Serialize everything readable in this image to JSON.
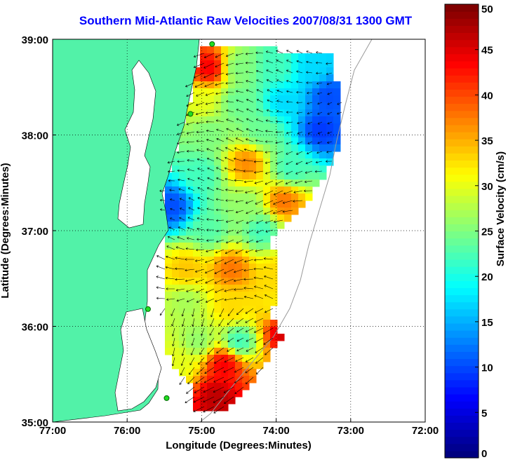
{
  "chart_data": {
    "type": "heatmap",
    "title": "Southern Mid-Atlantic Raw Velocities 2007/08/31 1300 GMT",
    "xlabel": "Longitude (Degrees:Minutes)",
    "ylabel": "Latitude (Degrees:Minutes)",
    "x_ticks": [
      {
        "value": -77,
        "label": "77:00"
      },
      {
        "value": -76,
        "label": "76:00"
      },
      {
        "value": -75,
        "label": "75:00"
      },
      {
        "value": -74,
        "label": "74:00"
      },
      {
        "value": -73,
        "label": "73:00"
      },
      {
        "value": -72,
        "label": "72:00"
      }
    ],
    "y_ticks": [
      {
        "value": 35,
        "label": "35:00"
      },
      {
        "value": 36,
        "label": "36:00"
      },
      {
        "value": 37,
        "label": "37:00"
      },
      {
        "value": 38,
        "label": "38:00"
      },
      {
        "value": 39,
        "label": "39:00"
      }
    ],
    "xlim": [
      -77,
      -72
    ],
    "ylim": [
      35,
      39
    ],
    "grid": "dotted",
    "colorbar": {
      "label": "Surface Velocity (cm/s)",
      "range": [
        0,
        50
      ],
      "ticks": [
        0,
        5,
        10,
        15,
        20,
        25,
        30,
        35,
        40,
        45,
        50
      ],
      "colormap": "jet"
    },
    "velocity_regions": [
      {
        "lon": -74.9,
        "lat": 38.7,
        "speed": 44
      },
      {
        "lon": -74.5,
        "lat": 38.7,
        "speed": 25
      },
      {
        "lon": -74.0,
        "lat": 38.7,
        "speed": 22
      },
      {
        "lon": -73.5,
        "lat": 38.7,
        "speed": 17
      },
      {
        "lon": -75.0,
        "lat": 38.35,
        "speed": 30
      },
      {
        "lon": -74.5,
        "lat": 38.35,
        "speed": 24
      },
      {
        "lon": -73.9,
        "lat": 38.35,
        "speed": 17
      },
      {
        "lon": -73.3,
        "lat": 38.4,
        "speed": 10
      },
      {
        "lon": -73.4,
        "lat": 38.05,
        "speed": 9
      },
      {
        "lon": -74.2,
        "lat": 38.05,
        "speed": 24
      },
      {
        "lon": -74.9,
        "lat": 38.0,
        "speed": 25
      },
      {
        "lon": -74.4,
        "lat": 37.7,
        "speed": 37
      },
      {
        "lon": -75.0,
        "lat": 37.6,
        "speed": 22
      },
      {
        "lon": -73.8,
        "lat": 37.65,
        "speed": 22
      },
      {
        "lon": -75.4,
        "lat": 37.25,
        "speed": 10
      },
      {
        "lon": -74.4,
        "lat": 37.25,
        "speed": 26
      },
      {
        "lon": -73.9,
        "lat": 37.3,
        "speed": 38
      },
      {
        "lon": -74.9,
        "lat": 37.0,
        "speed": 23
      },
      {
        "lon": -74.2,
        "lat": 37.0,
        "speed": 22
      },
      {
        "lon": -75.2,
        "lat": 36.6,
        "speed": 34
      },
      {
        "lon": -74.6,
        "lat": 36.6,
        "speed": 38
      },
      {
        "lon": -74.0,
        "lat": 36.55,
        "speed": 33
      },
      {
        "lon": -75.2,
        "lat": 36.25,
        "speed": 27
      },
      {
        "lon": -74.6,
        "lat": 36.2,
        "speed": 33
      },
      {
        "lon": -74.0,
        "lat": 36.2,
        "speed": 32
      },
      {
        "lon": -75.05,
        "lat": 35.85,
        "speed": 26
      },
      {
        "lon": -74.5,
        "lat": 35.85,
        "speed": 22
      },
      {
        "lon": -73.9,
        "lat": 35.95,
        "speed": 46
      },
      {
        "lon": -75.3,
        "lat": 35.6,
        "speed": 30
      },
      {
        "lon": -74.7,
        "lat": 35.6,
        "speed": 44
      },
      {
        "lon": -74.8,
        "lat": 35.25,
        "speed": 47
      }
    ],
    "hf_radar_sites": [
      {
        "lon": -74.86,
        "lat": 38.95
      },
      {
        "lon": -75.15,
        "lat": 38.22
      },
      {
        "lon": -75.72,
        "lat": 36.18
      },
      {
        "lon": -75.47,
        "lat": 35.25
      }
    ]
  }
}
